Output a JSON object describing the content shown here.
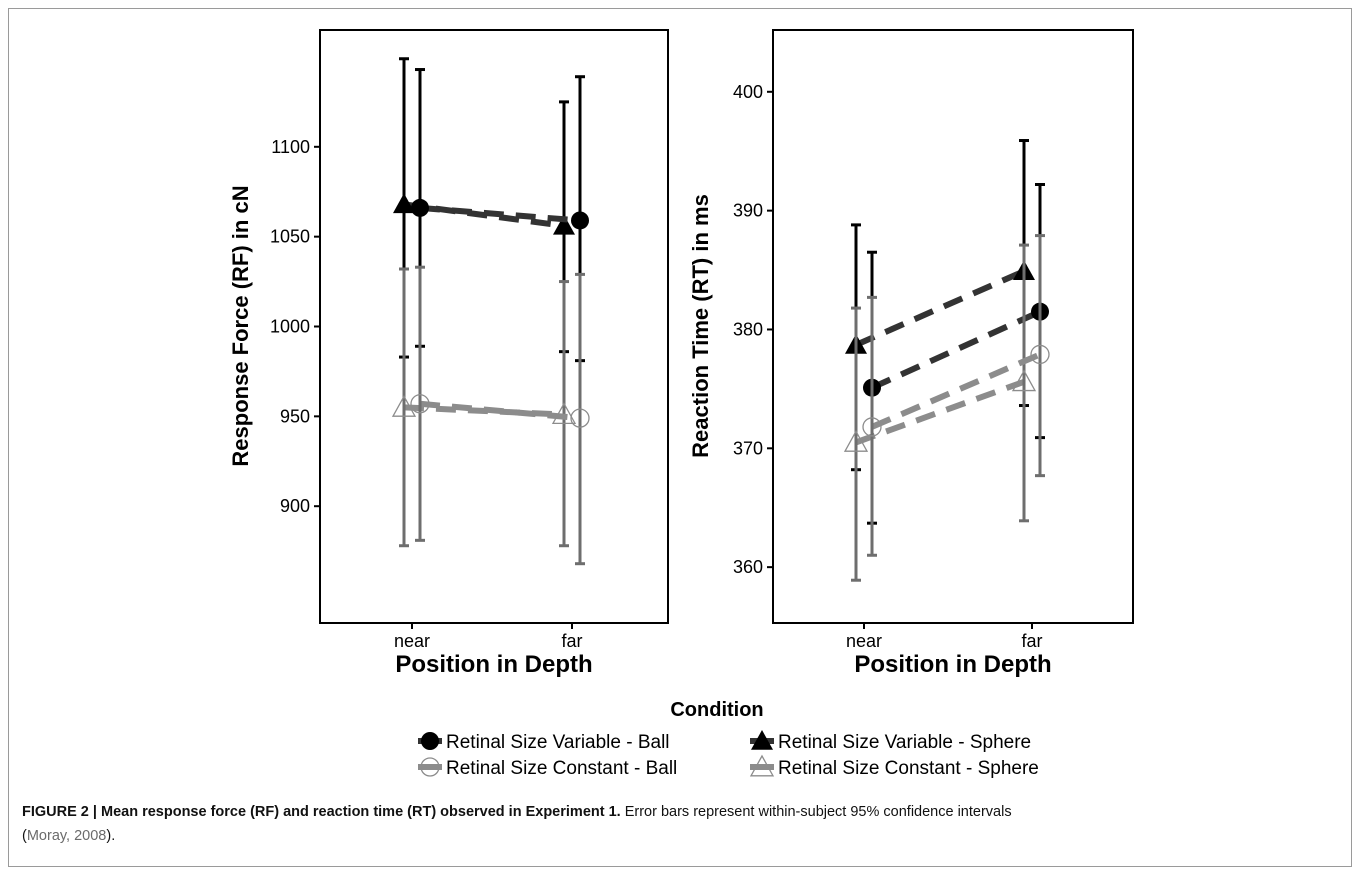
{
  "chart_data": [
    {
      "type": "line",
      "ylabel": "Response Force (RF) in cN",
      "xlabel": "Position in Depth",
      "categories": [
        "near",
        "far"
      ],
      "ylim": [
        835,
        1165
      ],
      "yticks": [
        900,
        950,
        1000,
        1050,
        1100
      ],
      "grid": false,
      "series": [
        {
          "name": "Retinal Size Variable - Sphere",
          "values": [
            1068,
            1056
          ],
          "ci_low": [
            983,
            986
          ],
          "ci_high": [
            1149,
            1125
          ]
        },
        {
          "name": "Retinal Size Variable - Ball",
          "values": [
            1066,
            1059
          ],
          "ci_low": [
            989,
            981
          ],
          "ci_high": [
            1143,
            1139
          ]
        },
        {
          "name": "Retinal Size Constant - Sphere",
          "values": [
            955,
            951
          ],
          "ci_low": [
            878,
            878
          ],
          "ci_high": [
            1032,
            1025
          ]
        },
        {
          "name": "Retinal Size Constant - Ball",
          "values": [
            957,
            949
          ],
          "ci_low": [
            881,
            868
          ],
          "ci_high": [
            1033,
            1029
          ]
        }
      ]
    },
    {
      "type": "line",
      "ylabel": "Reaction Time (RT) in ms",
      "xlabel": "Position in Depth",
      "categories": [
        "near",
        "far"
      ],
      "ylim": [
        355.3,
        405.2
      ],
      "yticks": [
        360,
        370,
        380,
        390,
        400
      ],
      "grid": false,
      "series": [
        {
          "name": "Retinal Size Variable - Sphere",
          "values": [
            378.7,
            384.9
          ],
          "ci_low": [
            368.2,
            373.6
          ],
          "ci_high": [
            388.8,
            395.9
          ]
        },
        {
          "name": "Retinal Size Variable - Ball",
          "values": [
            375.1,
            381.5
          ],
          "ci_low": [
            363.7,
            370.9
          ],
          "ci_high": [
            386.5,
            392.2
          ]
        },
        {
          "name": "Retinal Size Constant - Sphere",
          "values": [
            370.5,
            375.6
          ],
          "ci_low": [
            358.9,
            363.9
          ],
          "ci_high": [
            381.8,
            387.1
          ]
        },
        {
          "name": "Retinal Size Constant - Ball",
          "values": [
            371.8,
            377.9
          ],
          "ci_low": [
            361.0,
            367.7
          ],
          "ci_high": [
            382.7,
            387.9
          ]
        }
      ]
    }
  ],
  "legend": {
    "title": "Condition",
    "items": [
      {
        "label": "Retinal Size Variable - Ball",
        "marker": "filled-circle",
        "color": "#333333"
      },
      {
        "label": "Retinal Size Variable - Sphere",
        "marker": "filled-triangle",
        "color": "#333333"
      },
      {
        "label": "Retinal Size Constant - Ball",
        "marker": "open-circle",
        "color": "#8c8c8c"
      },
      {
        "label": "Retinal Size Constant - Sphere",
        "marker": "open-triangle",
        "color": "#8c8c8c"
      }
    ]
  },
  "colors": {
    "variable_line": "#333333",
    "variable_bar": "#000000",
    "constant_line": "#8c8c8c",
    "constant_bar": "#6e6e6e"
  },
  "caption": {
    "bold": "FIGURE 2 | Mean response force (RF) and reaction time (RT) observed in Experiment 1.",
    "text": " Error bars represent within-subject 95% confidence intervals",
    "open_paren": "(",
    "citation": "Moray, 2008",
    "close": ")."
  }
}
